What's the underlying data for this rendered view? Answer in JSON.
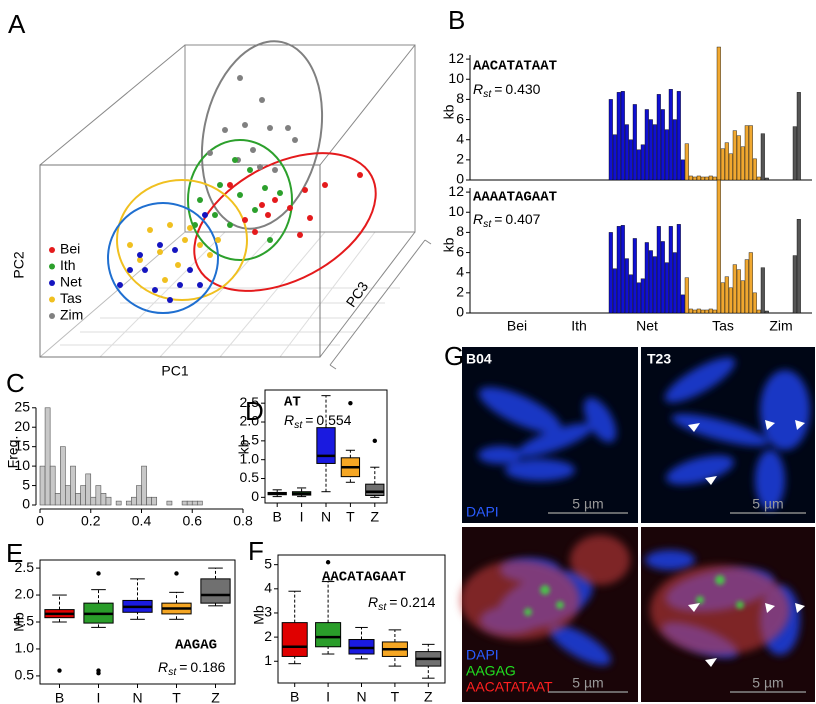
{
  "panel_labels": [
    "A",
    "B",
    "C",
    "D",
    "E",
    "F",
    "G"
  ],
  "pca": {
    "xlabel": "PC1",
    "ylabel": "PC2",
    "zlabel": "PC3",
    "legend": [
      {
        "name": "Bei",
        "color": "#e41a1c"
      },
      {
        "name": "Ith",
        "color": "#2ca02c"
      },
      {
        "name": "Net",
        "color": "#1515c0"
      },
      {
        "name": "Tas",
        "color": "#f0c020"
      },
      {
        "name": "Zim",
        "color": "#808080"
      }
    ]
  },
  "chart_data": [
    {
      "type": "bar",
      "ylabel": "kb",
      "annotation": "AACATATAAT",
      "stat": {
        "symbol": "R",
        "subscript": "st",
        "sign": "=",
        "value": "0.430"
      },
      "ylim": [
        0,
        13.4
      ],
      "yticks": [
        0,
        2,
        4,
        6,
        8,
        10,
        12
      ],
      "groups": [
        {
          "color": "#e41a1c",
          "values": [
            0,
            0,
            0,
            0,
            0,
            0,
            0,
            0,
            0,
            0,
            0,
            0,
            0,
            0,
            0,
            0
          ]
        },
        {
          "color": "#2ca02c",
          "values": [
            0,
            0,
            0,
            0,
            0,
            0,
            0,
            0,
            0,
            0,
            0,
            0,
            0,
            0,
            0
          ]
        },
        {
          "color": "#1010d0",
          "values": [
            8,
            4.5,
            8.7,
            8.8,
            5.5,
            4,
            7.5,
            3,
            3.5,
            7,
            6,
            5.5,
            8.5,
            7,
            5,
            9,
            6,
            8.8,
            2
          ]
        },
        {
          "color": "#f0a830",
          "values": [
            3.6,
            0.4,
            0.3,
            0.4,
            0.3,
            0.3,
            0.4,
            0.3,
            13.2,
            3.1,
            3.7,
            2.6,
            4.9,
            4.4,
            3.3,
            5.4,
            5.4,
            2.1,
            0.3
          ]
        },
        {
          "color": "#555555",
          "values": [
            4.6,
            0.2,
            0,
            0,
            0,
            0,
            0,
            0,
            5.3,
            8.7
          ]
        }
      ]
    },
    {
      "type": "bar",
      "ylabel": "kb",
      "annotation": "AAAATAGAAT",
      "stat": {
        "symbol": "R",
        "subscript": "st",
        "sign": "=",
        "value": "0.407"
      },
      "ylim": [
        0,
        13.4
      ],
      "yticks": [
        0,
        2,
        4,
        6,
        8,
        10,
        12
      ],
      "groups": [
        {
          "name": "Bei",
          "color": "#e41a1c",
          "values": [
            0,
            0,
            0,
            0,
            0,
            0,
            0,
            0,
            0,
            0,
            0,
            0,
            0,
            0,
            0,
            0
          ]
        },
        {
          "name": "Ith",
          "color": "#2ca02c",
          "values": [
            0,
            0,
            0,
            0,
            0,
            0,
            0,
            0,
            0,
            0,
            0,
            0,
            0,
            0,
            0
          ]
        },
        {
          "name": "Net",
          "color": "#1010d0",
          "values": [
            8,
            4.4,
            8.6,
            8.7,
            5.4,
            3.8,
            7.4,
            3,
            3.4,
            7,
            6.2,
            5.6,
            8.6,
            7.1,
            5,
            8.6,
            6,
            8.8,
            1.8
          ]
        },
        {
          "name": "Tas",
          "color": "#f0a830",
          "values": [
            3.5,
            0.4,
            0.3,
            0.4,
            0.3,
            0.3,
            0.4,
            0.3,
            13.2,
            3,
            3.6,
            2.5,
            4.8,
            4.3,
            3.2,
            5.3,
            6,
            2,
            0.3
          ]
        },
        {
          "name": "Zim",
          "color": "#555555",
          "values": [
            4.5,
            0.2,
            0,
            0,
            0,
            0,
            0,
            0,
            5.7,
            9.3
          ]
        }
      ]
    },
    {
      "type": "histogram",
      "ylabel": "Freq.",
      "color": "#c8c8c8",
      "bins": [
        0,
        0.02,
        0.04,
        0.06,
        0.08,
        0.1,
        0.12,
        0.14,
        0.16,
        0.18,
        0.2,
        0.22,
        0.24,
        0.26,
        0.28,
        0.3,
        0.32,
        0.34,
        0.36,
        0.38,
        0.4,
        0.42,
        0.44,
        0.46,
        0.48,
        0.5,
        0.52,
        0.54,
        0.56,
        0.58,
        0.6,
        0.62,
        0.64
      ],
      "counts": [
        10,
        25,
        10,
        3,
        15,
        5,
        10,
        3,
        5,
        8,
        2,
        5,
        3,
        2,
        0,
        1,
        0,
        1,
        2,
        5,
        10,
        2,
        2,
        0,
        0,
        1,
        0,
        0,
        1,
        1,
        1,
        1
      ],
      "xlim": [
        0,
        0.8
      ],
      "xticks": [
        0,
        0.2,
        0.4,
        0.6,
        0.8
      ],
      "ylim": [
        0,
        27
      ],
      "yticks": [
        0,
        5,
        10,
        15,
        20,
        25
      ]
    },
    {
      "type": "box",
      "ylabel": "kb",
      "annotation": "AT",
      "stat": {
        "symbol": "R",
        "subscript": "st",
        "sign": "=",
        "value": "0.554"
      },
      "categories": [
        "B",
        "I",
        "N",
        "T",
        "Z"
      ],
      "colors": [
        "#e00000",
        "#2a9d2a",
        "#1a1ae0",
        "#f5a623",
        "#707070"
      ],
      "ylim": [
        -0.15,
        2.85
      ],
      "yticks": [
        0,
        0.5,
        {
          "value": 1,
          "label": "1.0"
        },
        1.5,
        {
          "value": 2,
          "label": "2.0"
        },
        2.5
      ],
      "boxes": [
        {
          "whislo": 0.02,
          "q1": 0.07,
          "med": 0.1,
          "q3": 0.13,
          "whishi": 0.2,
          "fliers": []
        },
        {
          "whislo": 0.02,
          "q1": 0.06,
          "med": 0.1,
          "q3": 0.15,
          "whishi": 0.25,
          "fliers": []
        },
        {
          "whislo": 0.15,
          "q1": 0.9,
          "med": 1.1,
          "q3": 1.85,
          "whishi": 2.7,
          "fliers": []
        },
        {
          "whislo": 0.4,
          "q1": 0.55,
          "med": 0.8,
          "q3": 1.05,
          "whishi": 1.25,
          "fliers": [
            2.5
          ]
        },
        {
          "whislo": 0,
          "q1": 0.05,
          "med": 0.15,
          "q3": 0.35,
          "whishi": 0.8,
          "fliers": [
            1.5
          ]
        }
      ]
    },
    {
      "type": "box",
      "ylabel": "Mb",
      "annotation": "AAGAG",
      "stat": {
        "symbol": "R",
        "subscript": "st",
        "sign": "=",
        "value": "0.186"
      },
      "categories": [
        "B",
        "I",
        "N",
        "T",
        "Z"
      ],
      "colors": [
        "#e00000",
        "#2a9d2a",
        "#1a1ae0",
        "#f5a623",
        "#707070"
      ],
      "ylim": [
        0.35,
        2.65
      ],
      "yticks": [
        0.5,
        {
          "value": 1,
          "label": "1.0"
        },
        1.5,
        {
          "value": 2,
          "label": "2.0"
        },
        2.5
      ],
      "boxes": [
        {
          "whislo": 1.5,
          "q1": 1.58,
          "med": 1.65,
          "q3": 1.73,
          "whishi": 2.0,
          "fliers": [
            0.6
          ]
        },
        {
          "whislo": 1.4,
          "q1": 1.48,
          "med": 1.65,
          "q3": 1.85,
          "whishi": 2.1,
          "fliers": [
            0.6,
            0.55,
            2.4
          ]
        },
        {
          "whislo": 1.55,
          "q1": 1.68,
          "med": 1.78,
          "q3": 1.9,
          "whishi": 2.3,
          "fliers": []
        },
        {
          "whislo": 1.55,
          "q1": 1.65,
          "med": 1.75,
          "q3": 1.85,
          "whishi": 2.05,
          "fliers": [
            2.4
          ]
        },
        {
          "whislo": 1.8,
          "q1": 1.85,
          "med": 2.0,
          "q3": 2.3,
          "whishi": 2.5,
          "fliers": []
        }
      ]
    },
    {
      "type": "box",
      "ylabel": "Mb",
      "annotation": "AACATAGAAT",
      "stat": {
        "symbol": "R",
        "subscript": "st",
        "sign": "=",
        "value": "0.214"
      },
      "categories": [
        "B",
        "I",
        "N",
        "T",
        "Z"
      ],
      "colors": [
        "#e00000",
        "#2a9d2a",
        "#1a1ae0",
        "#f5a623",
        "#707070"
      ],
      "ylim": [
        0.1,
        5.4
      ],
      "yticks": [
        1,
        2,
        3,
        4,
        5
      ],
      "boxes": [
        {
          "whislo": 0.9,
          "q1": 1.2,
          "med": 1.6,
          "q3": 2.6,
          "whishi": 3.9,
          "fliers": []
        },
        {
          "whislo": 1.3,
          "q1": 1.6,
          "med": 2.0,
          "q3": 2.6,
          "whishi": 4.3,
          "fliers": [
            5.1
          ]
        },
        {
          "whislo": 1.1,
          "q1": 1.3,
          "med": 1.55,
          "q3": 1.9,
          "whishi": 2.4,
          "fliers": []
        },
        {
          "whislo": 0.8,
          "q1": 1.2,
          "med": 1.5,
          "q3": 1.8,
          "whishi": 2.3,
          "fliers": []
        },
        {
          "whislo": 0.3,
          "q1": 0.8,
          "med": 1.1,
          "q3": 1.4,
          "whishi": 1.7,
          "fliers": []
        }
      ]
    }
  ],
  "micrographs": {
    "samples": [
      "B04",
      "T23"
    ],
    "top_stain": "DAPI",
    "scale_bar": "5 µm",
    "bottom_stains": [
      {
        "name": "DAPI",
        "color": "#2a5cff"
      },
      {
        "name": "AAGAG",
        "color": "#20e020"
      },
      {
        "name": "AACATATAAT",
        "color": "#ff2020"
      }
    ]
  }
}
